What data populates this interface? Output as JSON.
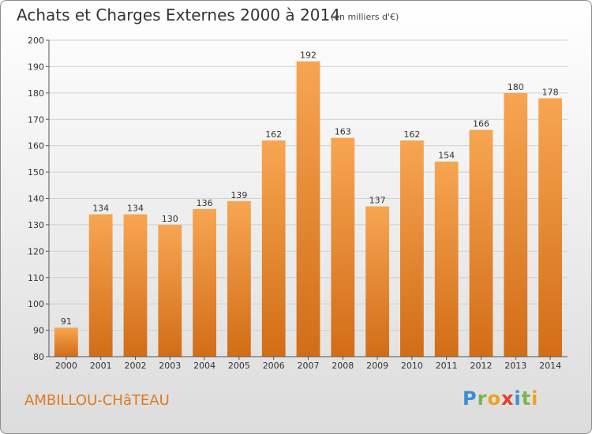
{
  "header": {
    "title": "Achats et Charges Externes 2000 à 2014",
    "subtitle": "(en milliers d'€)"
  },
  "footer": {
    "place": "AMBILLOU-CHâTEAU",
    "logo": "Proxiti"
  },
  "colors": {
    "bar_light": "#f7a552",
    "bar_dark": "#d26d16"
  },
  "chart_data": {
    "type": "bar",
    "title": "Achats et Charges Externes 2000 à 2014",
    "subtitle": "(en milliers d'€)",
    "categories": [
      "2000",
      "2001",
      "2002",
      "2003",
      "2004",
      "2005",
      "2006",
      "2007",
      "2008",
      "2009",
      "2010",
      "2011",
      "2012",
      "2013",
      "2014"
    ],
    "values": [
      91,
      134,
      134,
      130,
      136,
      139,
      162,
      192,
      163,
      137,
      162,
      154,
      166,
      180,
      178
    ],
    "ylim": [
      80,
      200
    ],
    "yticks": [
      80,
      90,
      100,
      110,
      120,
      130,
      140,
      150,
      160,
      170,
      180,
      190,
      200
    ],
    "grid": true,
    "xlabel": "",
    "ylabel": ""
  }
}
